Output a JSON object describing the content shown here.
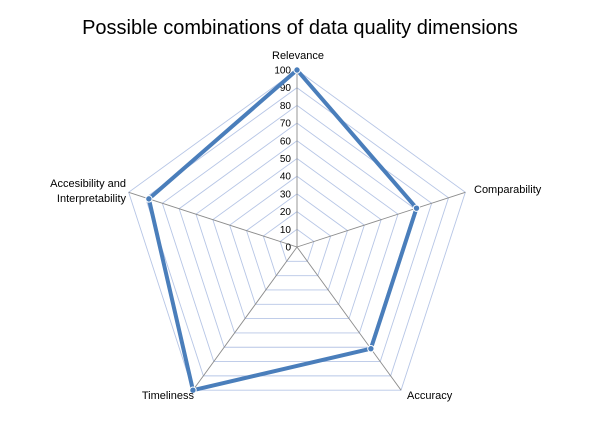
{
  "chart_data": {
    "type": "radar",
    "title": "Possible combinations of data quality dimensions",
    "categories": [
      "Relevance",
      "Comparability",
      "Accuracy",
      "Timeliness",
      "Accesibility and Interpretability"
    ],
    "category_lines": [
      [
        "Relevance"
      ],
      [
        "Comparability"
      ],
      [
        "Accuracy"
      ],
      [
        "Timeliness"
      ],
      [
        "Accesibility and",
        "Interpretability"
      ]
    ],
    "series": [
      {
        "values": [
          100,
          71,
          71,
          100,
          88
        ]
      }
    ],
    "rlim": [
      0,
      100
    ],
    "ticks": [
      0,
      10,
      20,
      30,
      40,
      50,
      60,
      70,
      80,
      90,
      100
    ],
    "grid": true,
    "legend": "none",
    "colors": {
      "series": "#4a7ebb",
      "gridline": "#b7c6e6",
      "spoke": "#8c8c8c"
    }
  }
}
